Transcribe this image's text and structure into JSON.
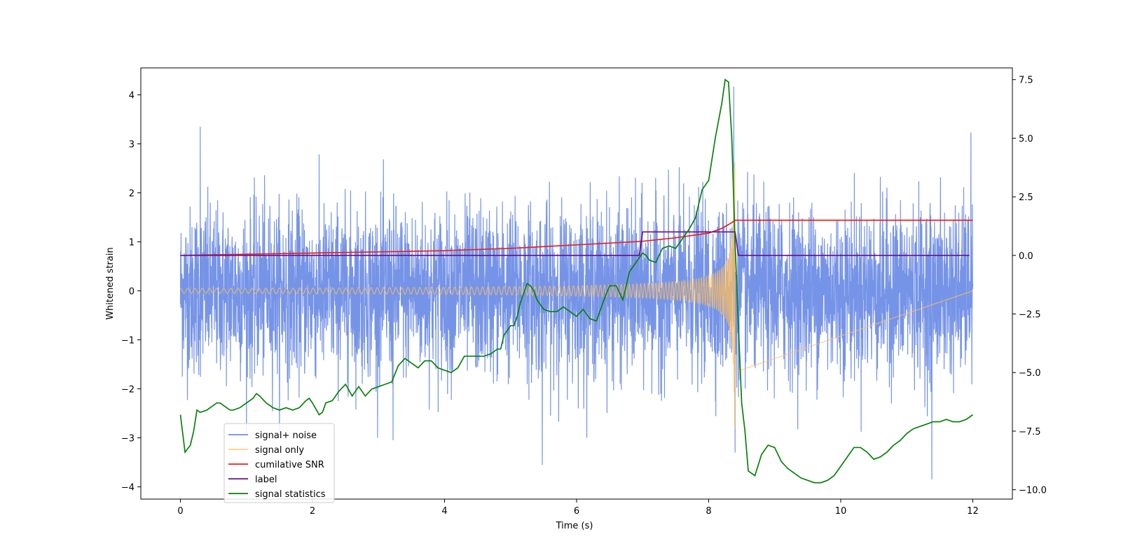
{
  "chart_data": {
    "type": "line",
    "title": "",
    "xlabel": "Time (s)",
    "ylabel": "Whitened strain",
    "y2label": "",
    "xlim": [
      -0.6,
      12.6
    ],
    "ylim": [
      -4.25,
      4.55
    ],
    "y2lim": [
      -10.4,
      8.0
    ],
    "xticks": [
      0,
      2,
      4,
      6,
      8,
      10,
      12
    ],
    "yticks": [
      -4,
      -3,
      -2,
      -1,
      0,
      1,
      2,
      3,
      4
    ],
    "y2ticks": [
      -10.0,
      -7.5,
      -5.0,
      -2.5,
      0.0,
      2.5,
      5.0,
      7.5
    ],
    "grid": false,
    "legend_position": "lower-left",
    "series": [
      {
        "name": "signal+ noise",
        "axis": "left",
        "color": "#6f8ee6",
        "description_only": true,
        "noise_sigma": 0.85,
        "x_range": [
          0,
          12
        ],
        "peak_points": [
          [
            0.3,
            3.35
          ],
          [
            8.38,
            4.17
          ],
          [
            11.97,
            3.23
          ],
          [
            5.48,
            -3.55
          ],
          [
            11.38,
            -3.85
          ],
          [
            3.22,
            -3.05
          ],
          [
            8.4,
            -3.3
          ]
        ]
      },
      {
        "name": "signal only",
        "axis": "left",
        "color": "#ffbf60",
        "chirp_end": 8.4,
        "amplitude_start": 0.05,
        "amplitude_end": 2.8
      },
      {
        "name": "cumilative SNR",
        "axis": "right",
        "color": "#e8211b",
        "x": [
          0,
          1,
          2,
          3,
          4,
          5,
          6,
          7,
          7.5,
          8,
          8.2,
          8.35,
          8.4,
          12
        ],
        "y": [
          0.0,
          0.05,
          0.1,
          0.15,
          0.2,
          0.3,
          0.45,
          0.6,
          0.75,
          0.95,
          1.15,
          1.4,
          1.5,
          1.5
        ]
      },
      {
        "name": "label",
        "axis": "right",
        "color": "#6a0f87",
        "x": [
          0,
          6.95,
          7.0,
          8.4,
          8.45,
          11.95
        ],
        "y": [
          0,
          0,
          1,
          1,
          0,
          0
        ]
      },
      {
        "name": "signal statistics",
        "axis": "right",
        "color": "#0a800a",
        "x": [
          0.0,
          0.07,
          0.15,
          0.2,
          0.25,
          0.3,
          0.4,
          0.5,
          0.55,
          0.6,
          0.7,
          0.75,
          0.8,
          0.9,
          1.0,
          1.1,
          1.15,
          1.2,
          1.3,
          1.4,
          1.5,
          1.6,
          1.7,
          1.8,
          1.9,
          1.95,
          2.0,
          2.1,
          2.15,
          2.2,
          2.3,
          2.4,
          2.5,
          2.6,
          2.7,
          2.8,
          2.9,
          3.0,
          3.1,
          3.2,
          3.3,
          3.4,
          3.5,
          3.6,
          3.7,
          3.8,
          3.9,
          4.0,
          4.1,
          4.2,
          4.3,
          4.4,
          4.5,
          4.6,
          4.7,
          4.8,
          4.85,
          4.9,
          5.0,
          5.05,
          5.1,
          5.15,
          5.2,
          5.25,
          5.3,
          5.35,
          5.4,
          5.5,
          5.6,
          5.7,
          5.8,
          5.9,
          6.0,
          6.1,
          6.2,
          6.3,
          6.4,
          6.5,
          6.55,
          6.6,
          6.7,
          6.8,
          6.9,
          7.0,
          7.05,
          7.1,
          7.2,
          7.3,
          7.4,
          7.5,
          7.6,
          7.7,
          7.8,
          7.9,
          8.0,
          8.1,
          8.2,
          8.25,
          8.3,
          8.35,
          8.4,
          8.45,
          8.5,
          8.55,
          8.6,
          8.7,
          8.8,
          8.9,
          9.0,
          9.1,
          9.2,
          9.3,
          9.4,
          9.5,
          9.6,
          9.7,
          9.8,
          9.9,
          10.0,
          10.1,
          10.2,
          10.3,
          10.4,
          10.5,
          10.6,
          10.7,
          10.8,
          10.9,
          11.0,
          11.1,
          11.2,
          11.3,
          11.4,
          11.5,
          11.6,
          11.7,
          11.8,
          11.9,
          12.0
        ],
        "y": [
          -6.8,
          -8.4,
          -8.1,
          -7.5,
          -6.6,
          -6.7,
          -6.6,
          -6.4,
          -6.3,
          -6.3,
          -6.5,
          -6.6,
          -6.6,
          -6.5,
          -6.3,
          -6.1,
          -5.9,
          -6.0,
          -6.3,
          -6.5,
          -6.6,
          -6.5,
          -6.6,
          -6.5,
          -6.2,
          -6.1,
          -6.3,
          -6.8,
          -6.7,
          -6.3,
          -6.2,
          -5.8,
          -5.5,
          -6.0,
          -5.6,
          -6.0,
          -5.7,
          -5.6,
          -5.5,
          -5.4,
          -4.7,
          -4.4,
          -4.6,
          -4.8,
          -4.5,
          -4.5,
          -4.8,
          -4.9,
          -5.0,
          -4.8,
          -4.3,
          -4.3,
          -4.3,
          -4.3,
          -4.2,
          -4.0,
          -4.0,
          -3.4,
          -3.0,
          -3.0,
          -2.6,
          -2.0,
          -1.6,
          -1.2,
          -1.3,
          -1.5,
          -1.9,
          -2.3,
          -2.4,
          -2.4,
          -2.2,
          -2.4,
          -2.6,
          -2.3,
          -2.7,
          -2.8,
          -2.0,
          -1.3,
          -1.3,
          -1.3,
          -1.9,
          -0.7,
          -0.3,
          0.1,
          0.0,
          -0.2,
          -0.3,
          0.3,
          0.4,
          0.3,
          0.7,
          1.1,
          1.6,
          2.8,
          3.2,
          5.0,
          6.5,
          7.5,
          7.4,
          5.0,
          0.5,
          -3.0,
          -6.3,
          -7.5,
          -9.2,
          -9.4,
          -8.5,
          -8.1,
          -8.2,
          -8.8,
          -9.1,
          -9.3,
          -9.5,
          -9.6,
          -9.7,
          -9.7,
          -9.6,
          -9.4,
          -9.0,
          -8.6,
          -8.2,
          -8.2,
          -8.4,
          -8.7,
          -8.6,
          -8.4,
          -8.1,
          -7.9,
          -7.6,
          -7.4,
          -7.3,
          -7.2,
          -7.1,
          -7.1,
          -7.0,
          -7.1,
          -7.1,
          -7.0,
          -6.8
        ]
      }
    ]
  }
}
